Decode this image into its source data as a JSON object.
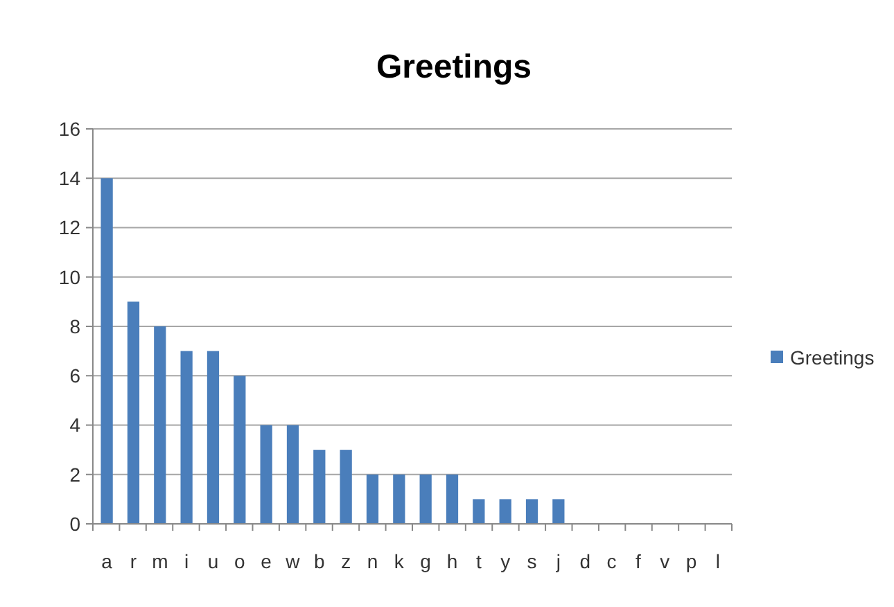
{
  "chart_data": {
    "type": "bar",
    "title": "Greetings",
    "categories": [
      "a",
      "r",
      "m",
      "i",
      "u",
      "o",
      "e",
      "w",
      "b",
      "z",
      "n",
      "k",
      "g",
      "h",
      "t",
      "y",
      "s",
      "j",
      "d",
      "c",
      "f",
      "v",
      "p",
      "l"
    ],
    "series": [
      {
        "name": "Greetings",
        "color": "#4a7ebb",
        "values": [
          14,
          9,
          8,
          7,
          7,
          6,
          4,
          4,
          3,
          3,
          2,
          2,
          2,
          2,
          1,
          1,
          1,
          1,
          0,
          0,
          0,
          0,
          0,
          0
        ]
      }
    ],
    "ylim": [
      0,
      16
    ],
    "yticks": [
      0,
      2,
      4,
      6,
      8,
      10,
      12,
      14,
      16
    ],
    "grid": "y",
    "legend": "right"
  }
}
